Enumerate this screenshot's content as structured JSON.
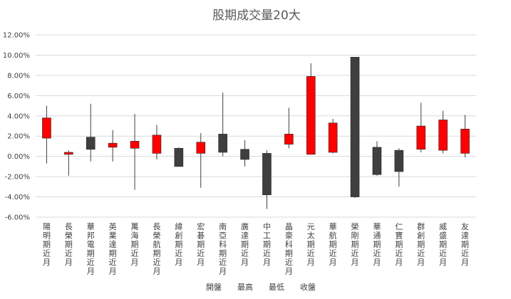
{
  "chart_data": {
    "type": "candlestick",
    "title": "股期成交量20大",
    "yaxis": {
      "min": -0.06,
      "max": 0.12,
      "step": 0.02,
      "tick_labels": [
        "12.00%",
        "10.00%",
        "8.00%",
        "6.00%",
        "4.00%",
        "2.00%",
        "0.00%",
        "-2.00%",
        "-4.00%",
        "-6.00%"
      ]
    },
    "grid": true,
    "legend_position": "bottom",
    "legend": [
      "開盤",
      "最高",
      "最低",
      "收盤"
    ],
    "series_fields": [
      "open",
      "high",
      "low",
      "close"
    ],
    "colors": {
      "up": "#ff0000",
      "down": "#3f3f3f",
      "wick": "#404040",
      "grid": "#d9d9d9"
    },
    "categories": [
      "陽明期近月",
      "長榮期近月",
      "華邦電期近月",
      "英業達期近月",
      "萬海期近月",
      "長榮航期近月",
      "緯創期近月",
      "宏碁期近月",
      "南亞科期近月",
      "廣達期近月",
      "中工期近月",
      "晶豪科期近月",
      "元太期近月",
      "華航期近月",
      "榮剛期近月",
      "華通期近月",
      "仁寶期近月",
      "群創期近月",
      "威盛期近月",
      "友達期近月"
    ],
    "ohlc": [
      {
        "open": 0.018,
        "high": 0.05,
        "low": -0.007,
        "close": 0.038
      },
      {
        "open": 0.002,
        "high": 0.006,
        "low": -0.019,
        "close": 0.004
      },
      {
        "open": 0.019,
        "high": 0.052,
        "low": -0.005,
        "close": 0.007
      },
      {
        "open": 0.009,
        "high": 0.026,
        "low": -0.005,
        "close": 0.013
      },
      {
        "open": 0.008,
        "high": 0.042,
        "low": -0.033,
        "close": 0.015
      },
      {
        "open": 0.003,
        "high": 0.031,
        "low": -0.003,
        "close": 0.021
      },
      {
        "open": 0.008,
        "high": 0.009,
        "low": -0.01,
        "close": -0.01
      },
      {
        "open": 0.003,
        "high": 0.023,
        "low": -0.031,
        "close": 0.014
      },
      {
        "open": 0.022,
        "high": 0.063,
        "low": 0.0,
        "close": 0.004
      },
      {
        "open": 0.007,
        "high": 0.016,
        "low": -0.01,
        "close": -0.003
      },
      {
        "open": 0.003,
        "high": 0.006,
        "low": -0.052,
        "close": -0.038
      },
      {
        "open": 0.012,
        "high": 0.048,
        "low": 0.008,
        "close": 0.022
      },
      {
        "open": 0.002,
        "high": 0.092,
        "low": 0.002,
        "close": 0.079
      },
      {
        "open": 0.004,
        "high": 0.037,
        "low": 0.003,
        "close": 0.033
      },
      {
        "open": 0.098,
        "high": 0.098,
        "low": -0.041,
        "close": -0.04
      },
      {
        "open": 0.009,
        "high": 0.015,
        "low": -0.019,
        "close": -0.018
      },
      {
        "open": 0.006,
        "high": 0.008,
        "low": -0.03,
        "close": -0.015
      },
      {
        "open": 0.007,
        "high": 0.053,
        "low": 0.004,
        "close": 0.03
      },
      {
        "open": 0.006,
        "high": 0.045,
        "low": 0.003,
        "close": 0.036
      },
      {
        "open": 0.003,
        "high": 0.041,
        "low": -0.001,
        "close": 0.027
      }
    ]
  }
}
